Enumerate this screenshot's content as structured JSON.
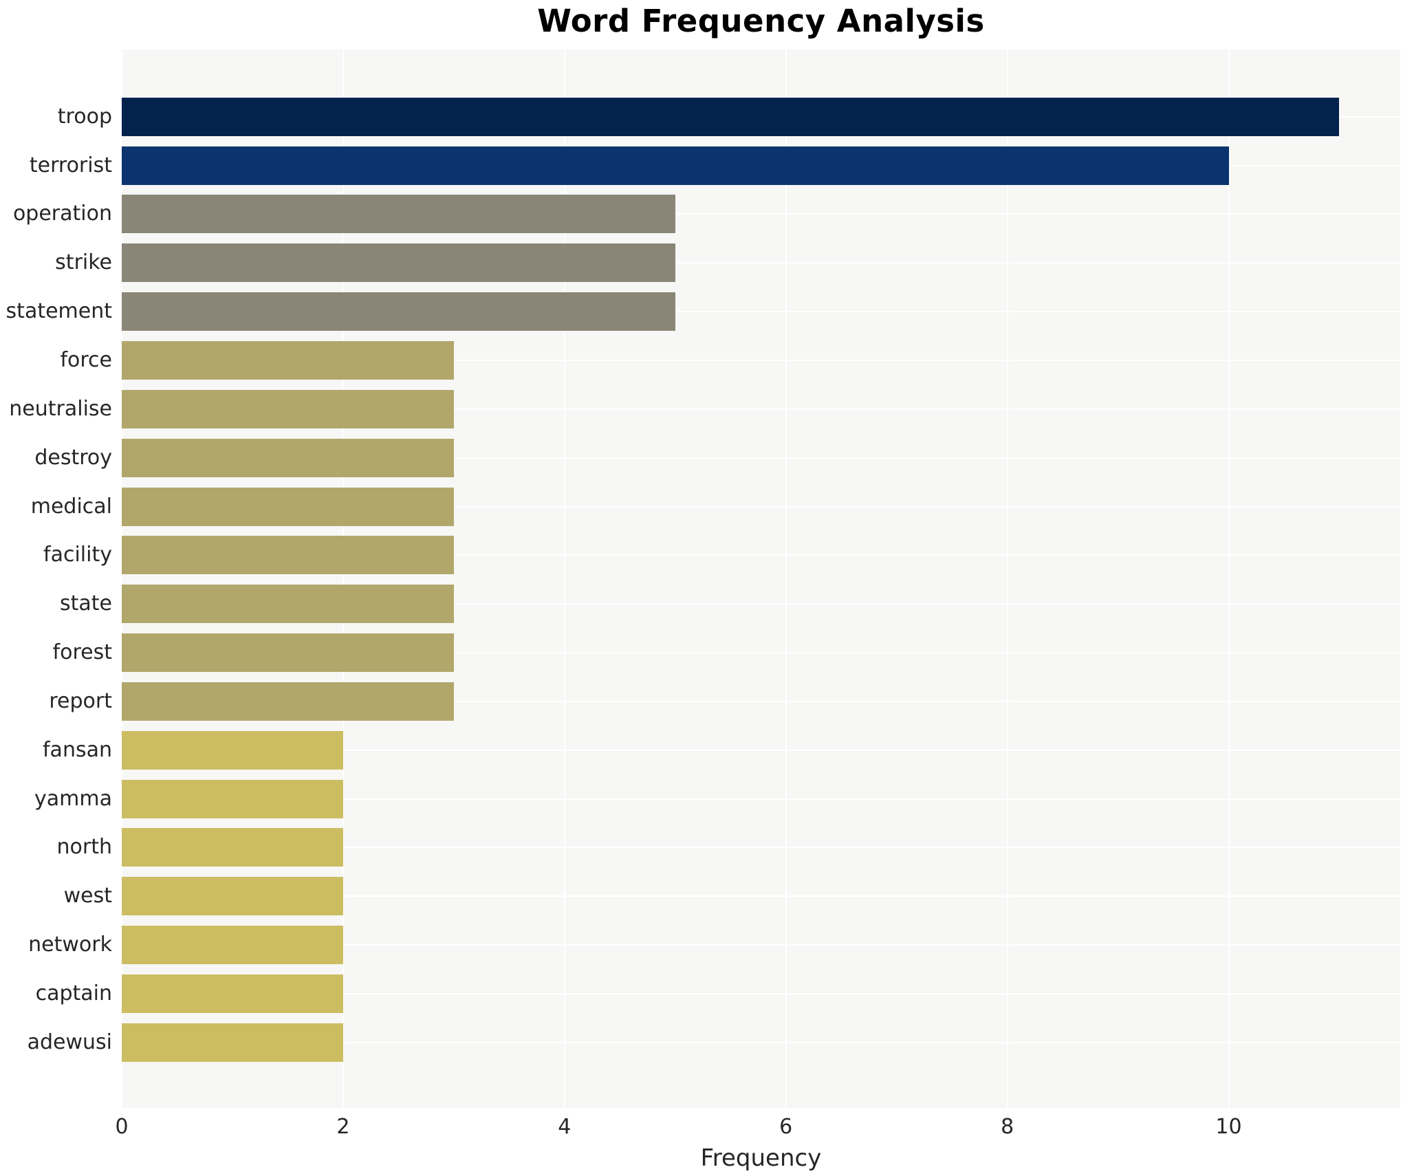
{
  "chart_data": {
    "type": "bar",
    "orientation": "horizontal",
    "title": "Word Frequency Analysis",
    "xlabel": "Frequency",
    "ylabel": "",
    "categories": [
      "troop",
      "terrorist",
      "operation",
      "strike",
      "statement",
      "force",
      "neutralise",
      "destroy",
      "medical",
      "facility",
      "state",
      "forest",
      "report",
      "fansan",
      "yamma",
      "north",
      "west",
      "network",
      "captain",
      "adewusi"
    ],
    "values": [
      11,
      10,
      5,
      5,
      5,
      3,
      3,
      3,
      3,
      3,
      3,
      3,
      3,
      2,
      2,
      2,
      2,
      2,
      2,
      2
    ],
    "bar_colors": [
      "#03224c",
      "#0b336e",
      "#8a8677",
      "#8a8677",
      "#8a8677",
      "#b1a76b",
      "#b1a76b",
      "#b1a76b",
      "#b1a76b",
      "#b1a76b",
      "#b1a76b",
      "#b1a76b",
      "#b1a76b",
      "#ccbd62",
      "#ccbd62",
      "#ccbd62",
      "#ccbd62",
      "#ccbd62",
      "#ccbd62",
      "#ccbd62"
    ],
    "xticks": [
      0,
      2,
      4,
      6,
      8,
      10
    ],
    "xlim": [
      0,
      11.55
    ],
    "grid": true,
    "legend_position": "none",
    "plot_background": "#f7f7f6",
    "grid_color": "#ffffff",
    "tick_text_color": "#262626",
    "title_color": "#000000"
  }
}
